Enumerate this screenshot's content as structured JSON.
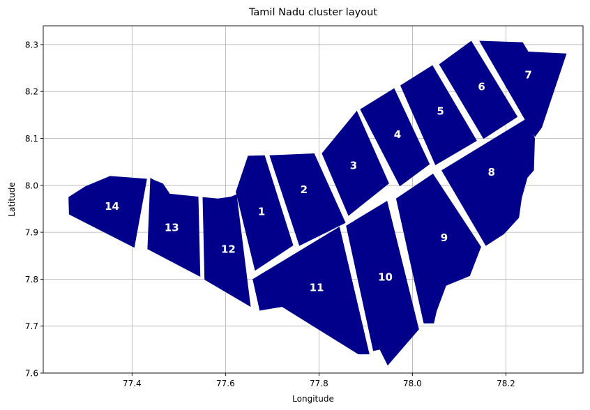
{
  "chart_data": {
    "type": "map",
    "title": "Tamil Nadu cluster layout",
    "xlabel": "Longitude",
    "ylabel": "Latitude",
    "xlim": [
      77.21,
      78.365
    ],
    "ylim": [
      7.6,
      8.34
    ],
    "x_ticks": [
      "77.4",
      "77.6",
      "77.8",
      "78.0",
      "78.2"
    ],
    "x_tick_values": [
      77.4,
      77.6,
      77.8,
      78.0,
      78.2
    ],
    "y_ticks": [
      "7.6",
      "7.7",
      "7.8",
      "7.9",
      "8.0",
      "8.1",
      "8.2",
      "8.3"
    ],
    "y_tick_values": [
      7.6,
      7.7,
      7.8,
      7.9,
      8.0,
      8.1,
      8.2,
      8.3
    ],
    "grid": true,
    "fill_color": "#00008b",
    "label_color": "#ffffff",
    "clusters": [
      {
        "label": "1",
        "center": [
          77.677,
          7.944
        ],
        "polygon": [
          [
            77.648,
            8.063
          ],
          [
            77.684,
            8.064
          ],
          [
            77.745,
            7.872
          ],
          [
            77.663,
            7.818
          ],
          [
            77.622,
            7.986
          ]
        ]
      },
      {
        "label": "2",
        "center": [
          77.768,
          7.991
        ],
        "polygon": [
          [
            77.694,
            8.064
          ],
          [
            77.79,
            8.068
          ],
          [
            77.857,
            7.92
          ],
          [
            77.758,
            7.871
          ]
        ]
      },
      {
        "label": "3",
        "center": [
          77.874,
          8.042
        ],
        "polygon": [
          [
            77.806,
            8.068
          ],
          [
            77.881,
            8.159
          ],
          [
            77.95,
            8.004
          ],
          [
            77.863,
            7.935
          ]
        ]
      },
      {
        "label": "4",
        "center": [
          77.968,
          8.108
        ],
        "polygon": [
          [
            77.888,
            8.162
          ],
          [
            77.961,
            8.207
          ],
          [
            78.037,
            8.045
          ],
          [
            77.973,
            7.998
          ]
        ]
      },
      {
        "label": "5",
        "center": [
          78.06,
          8.158
        ],
        "polygon": [
          [
            77.974,
            8.213
          ],
          [
            78.043,
            8.256
          ],
          [
            78.138,
            8.095
          ],
          [
            78.049,
            8.043
          ]
        ]
      },
      {
        "label": "6",
        "center": [
          78.148,
          8.21
        ],
        "polygon": [
          [
            78.057,
            8.258
          ],
          [
            78.126,
            8.308
          ],
          [
            78.225,
            8.146
          ],
          [
            78.152,
            8.099
          ]
        ]
      },
      {
        "label": "7",
        "center": [
          78.248,
          8.235
        ],
        "polygon": [
          [
            78.143,
            8.308
          ],
          [
            78.236,
            8.305
          ],
          [
            78.248,
            8.285
          ],
          [
            78.33,
            8.281
          ],
          [
            78.277,
            8.123
          ],
          [
            78.262,
            8.103
          ]
        ]
      },
      {
        "label": "8",
        "center": [
          78.169,
          8.028
        ],
        "polygon": [
          [
            78.062,
            8.032
          ],
          [
            78.245,
            8.143
          ],
          [
            78.262,
            8.1
          ],
          [
            78.26,
            8.032
          ],
          [
            78.246,
            8.016
          ],
          [
            78.234,
            7.973
          ],
          [
            78.228,
            7.931
          ],
          [
            78.196,
            7.896
          ],
          [
            78.157,
            7.871
          ]
        ]
      },
      {
        "label": "9",
        "center": [
          78.068,
          7.888
        ],
        "polygon": [
          [
            77.965,
            7.972
          ],
          [
            78.044,
            8.025
          ],
          [
            78.147,
            7.869
          ],
          [
            78.123,
            7.807
          ],
          [
            78.072,
            7.786
          ],
          [
            78.052,
            7.732
          ],
          [
            78.046,
            7.706
          ],
          [
            78.024,
            7.706
          ]
        ]
      },
      {
        "label": "10",
        "center": [
          77.942,
          7.804
        ],
        "polygon": [
          [
            77.858,
            7.914
          ],
          [
            77.946,
            7.967
          ],
          [
            78.014,
            7.693
          ],
          [
            77.947,
            7.616
          ],
          [
            77.93,
            7.65
          ],
          [
            77.916,
            7.647
          ]
        ]
      },
      {
        "label": "11",
        "center": [
          77.795,
          7.782
        ],
        "polygon": [
          [
            77.658,
            7.8
          ],
          [
            77.844,
            7.912
          ],
          [
            77.908,
            7.64
          ],
          [
            77.884,
            7.64
          ],
          [
            77.721,
            7.741
          ],
          [
            77.673,
            7.733
          ]
        ]
      },
      {
        "label": "12",
        "center": [
          77.606,
          7.864
        ],
        "polygon": [
          [
            77.551,
            7.975
          ],
          [
            77.555,
            7.799
          ],
          [
            77.654,
            7.741
          ],
          [
            77.624,
            7.981
          ],
          [
            77.612,
            7.976
          ],
          [
            77.584,
            7.972
          ]
        ]
      },
      {
        "label": "13",
        "center": [
          77.485,
          7.91
        ],
        "polygon": [
          [
            77.439,
            8.016
          ],
          [
            77.448,
            8.011
          ],
          [
            77.466,
            8.004
          ],
          [
            77.481,
            7.982
          ],
          [
            77.542,
            7.976
          ],
          [
            77.546,
            7.805
          ],
          [
            77.433,
            7.864
          ]
        ]
      },
      {
        "label": "14",
        "center": [
          77.357,
          7.955
        ],
        "polygon": [
          [
            77.264,
            7.975
          ],
          [
            77.3,
            7.998
          ],
          [
            77.353,
            8.02
          ],
          [
            77.432,
            8.014
          ],
          [
            77.405,
            7.867
          ],
          [
            77.265,
            7.938
          ]
        ]
      }
    ]
  }
}
